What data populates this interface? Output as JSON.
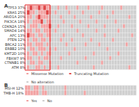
{
  "chart_data": [
    {
      "type": "heatmap",
      "title": "A",
      "tick_labels": "y",
      "rows": [
        "TP53 37%",
        "KRAS 25%",
        "ARID1A 20%",
        "PIK3CA 18%",
        "CDKN2A 15%",
        "SMAD4 14%",
        "APC 13%",
        "PTEN 12%",
        "BRCA2 11%",
        "ERBB2 10%",
        "KMT2D 10%",
        "FBXW7 9%",
        "CTNNB1 8%",
        "ATM 8%"
      ],
      "series": [
        {
          "name": "Missense Mutation",
          "code": 1,
          "color": "#f2a2a2"
        },
        {
          "name": "Truncating Mutation",
          "code": 2,
          "color": "#e04848"
        },
        {
          "name": "No alteration",
          "code": 0,
          "color": "#cfcfcf"
        }
      ],
      "highlight_columns": [
        0,
        8
      ],
      "cells": [
        [
          1,
          2,
          1,
          1,
          2,
          1,
          2,
          1,
          1,
          0,
          0,
          1,
          0,
          0,
          1,
          0,
          0,
          0,
          1,
          0,
          0,
          0,
          1,
          0,
          0,
          0,
          0,
          1,
          0,
          0,
          0,
          0,
          0,
          0,
          1,
          0,
          0,
          0,
          0,
          0
        ],
        [
          2,
          1,
          1,
          0,
          1,
          1,
          1,
          2,
          1,
          0,
          1,
          0,
          0,
          0,
          0,
          1,
          0,
          0,
          0,
          0,
          1,
          0,
          0,
          0,
          0,
          0,
          1,
          0,
          0,
          0,
          0,
          1,
          0,
          0,
          0,
          0,
          0,
          0,
          0,
          0
        ],
        [
          1,
          1,
          0,
          1,
          2,
          1,
          1,
          1,
          0,
          0,
          0,
          0,
          1,
          0,
          0,
          0,
          0,
          1,
          0,
          0,
          0,
          0,
          0,
          1,
          0,
          0,
          0,
          0,
          0,
          1,
          0,
          0,
          0,
          0,
          0,
          0,
          0,
          1,
          0,
          0
        ],
        [
          1,
          0,
          1,
          1,
          1,
          2,
          0,
          1,
          1,
          0,
          0,
          0,
          0,
          1,
          0,
          0,
          0,
          0,
          0,
          1,
          0,
          0,
          0,
          0,
          0,
          1,
          0,
          0,
          0,
          0,
          0,
          0,
          1,
          0,
          0,
          0,
          0,
          0,
          0,
          0
        ],
        [
          0,
          1,
          1,
          1,
          0,
          1,
          1,
          1,
          2,
          0,
          0,
          1,
          0,
          0,
          0,
          0,
          1,
          0,
          0,
          0,
          0,
          0,
          1,
          0,
          0,
          0,
          0,
          0,
          1,
          0,
          0,
          0,
          0,
          0,
          0,
          1,
          0,
          0,
          0,
          0
        ],
        [
          1,
          1,
          0,
          1,
          1,
          0,
          1,
          1,
          1,
          0,
          1,
          0,
          0,
          0,
          0,
          0,
          0,
          0,
          1,
          0,
          0,
          0,
          0,
          0,
          0,
          1,
          0,
          0,
          0,
          0,
          0,
          0,
          0,
          1,
          0,
          0,
          0,
          0,
          0,
          0
        ],
        [
          2,
          1,
          1,
          0,
          1,
          1,
          0,
          1,
          1,
          0,
          0,
          0,
          0,
          1,
          0,
          0,
          0,
          0,
          0,
          0,
          1,
          0,
          0,
          0,
          0,
          0,
          0,
          0,
          1,
          0,
          0,
          0,
          0,
          0,
          0,
          0,
          0,
          0,
          1,
          0
        ],
        [
          1,
          0,
          1,
          1,
          0,
          1,
          1,
          0,
          1,
          0,
          0,
          0,
          1,
          0,
          0,
          0,
          1,
          0,
          0,
          0,
          0,
          0,
          0,
          1,
          0,
          0,
          0,
          0,
          0,
          0,
          0,
          1,
          0,
          0,
          0,
          0,
          0,
          0,
          0,
          0
        ],
        [
          1,
          1,
          0,
          1,
          1,
          1,
          0,
          1,
          0,
          0,
          0,
          0,
          0,
          0,
          1,
          0,
          0,
          0,
          0,
          0,
          0,
          1,
          0,
          0,
          0,
          0,
          1,
          0,
          0,
          0,
          0,
          0,
          0,
          0,
          0,
          0,
          1,
          0,
          0,
          0
        ],
        [
          0,
          1,
          1,
          0,
          1,
          1,
          1,
          0,
          1,
          0,
          1,
          0,
          0,
          0,
          0,
          0,
          0,
          1,
          0,
          0,
          0,
          0,
          0,
          0,
          0,
          0,
          0,
          0,
          0,
          1,
          0,
          0,
          0,
          0,
          0,
          0,
          0,
          0,
          0,
          0
        ],
        [
          1,
          0,
          1,
          1,
          0,
          1,
          0,
          1,
          1,
          0,
          0,
          0,
          0,
          0,
          0,
          1,
          0,
          0,
          0,
          0,
          0,
          0,
          0,
          0,
          1,
          0,
          0,
          0,
          0,
          0,
          0,
          0,
          0,
          1,
          0,
          0,
          0,
          0,
          0,
          0
        ],
        [
          1,
          1,
          0,
          0,
          1,
          0,
          1,
          1,
          0,
          0,
          0,
          0,
          1,
          0,
          0,
          0,
          0,
          0,
          0,
          0,
          0,
          1,
          0,
          0,
          0,
          0,
          0,
          0,
          0,
          0,
          1,
          0,
          0,
          0,
          0,
          0,
          0,
          0,
          0,
          0
        ],
        [
          0,
          1,
          1,
          0,
          1,
          1,
          0,
          0,
          1,
          0,
          0,
          0,
          0,
          0,
          0,
          0,
          0,
          0,
          1,
          0,
          0,
          0,
          0,
          0,
          0,
          0,
          0,
          1,
          0,
          0,
          0,
          0,
          0,
          0,
          0,
          0,
          0,
          0,
          0,
          0
        ],
        [
          1,
          0,
          0,
          1,
          1,
          0,
          1,
          0,
          1,
          0,
          0,
          1,
          0,
          0,
          0,
          0,
          0,
          0,
          0,
          0,
          0,
          0,
          0,
          0,
          1,
          0,
          0,
          0,
          0,
          0,
          0,
          0,
          0,
          0,
          0,
          0,
          0,
          1,
          0,
          0
        ]
      ]
    },
    {
      "type": "heatmap",
      "title": "B",
      "tick_labels": "y",
      "rows": [
        "MSI-H 12%",
        "TMB-H 18%"
      ],
      "series": [
        {
          "name": "Yes",
          "code": 1,
          "color": "#f2a2a2"
        },
        {
          "name": "No",
          "code": 0,
          "color": "#cfcfcf"
        }
      ],
      "cells": [
        [
          1,
          1,
          0,
          1,
          1,
          0,
          1,
          0,
          0,
          0,
          0,
          0,
          0,
          0,
          1,
          0,
          0,
          0,
          0,
          0,
          0,
          0,
          0,
          0,
          0,
          0,
          0,
          0,
          0,
          0,
          0,
          0,
          0,
          0,
          0,
          0,
          0,
          0,
          0,
          0
        ],
        [
          1,
          1,
          1,
          1,
          1,
          0,
          1,
          1,
          0,
          0,
          0,
          0,
          0,
          0,
          1,
          0,
          0,
          0,
          0,
          0,
          0,
          1,
          0,
          0,
          0,
          0,
          0,
          0,
          0,
          0,
          0,
          0,
          0,
          0,
          0,
          0,
          0,
          0,
          0,
          0
        ]
      ]
    }
  ]
}
